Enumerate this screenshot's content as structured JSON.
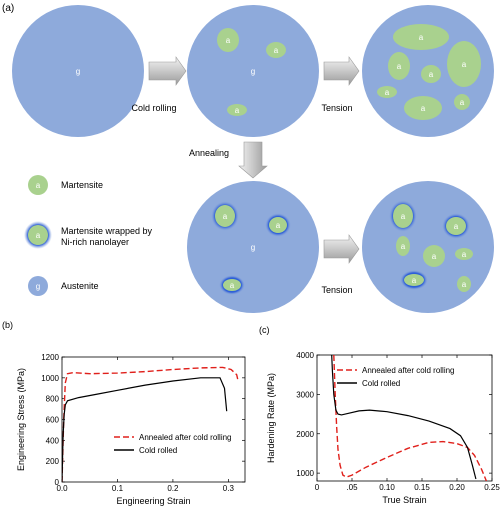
{
  "panel_labels": {
    "a": "(a)",
    "b": "(b)",
    "c": "(c)"
  },
  "schematic": {
    "austenite_symbol": "g",
    "martensite_symbol": "a",
    "arrows": {
      "cold_rolling": "Cold rolling",
      "tension_top": "Tension",
      "annealing": "Annealing",
      "tension_bottom": "Tension"
    },
    "legend": [
      {
        "symbol": "a",
        "text": "Martensite"
      },
      {
        "symbol": "a",
        "text_line1": "Martensite wrapped by",
        "text_line2": "Ni-rich nanolayer"
      },
      {
        "symbol": "g",
        "text": "Austenite"
      }
    ],
    "colors": {
      "austenite": "#8eaadb",
      "martensite": "#a9d18e",
      "nanolayer": "#2e5fd8"
    }
  },
  "chart_data": [
    {
      "type": "line",
      "xlabel": "Engineering Strain",
      "ylabel": "Engineering Stress (MPa)",
      "xlim": [
        0,
        0.33
      ],
      "ylim": [
        0,
        1200
      ],
      "xticks": [
        "0.0",
        "0.1",
        "0.2",
        "0.3"
      ],
      "yticks": [
        "0",
        "200",
        "400",
        "600",
        "800",
        "1000",
        "1200"
      ],
      "series": [
        {
          "name": "Annealed after cold rolling",
          "color": "#e0201b",
          "dash": true,
          "x": [
            0,
            0.003,
            0.006,
            0.01,
            0.02,
            0.05,
            0.1,
            0.15,
            0.2,
            0.25,
            0.29,
            0.305,
            0.315,
            0.318
          ],
          "y": [
            0,
            600,
            950,
            1040,
            1050,
            1040,
            1045,
            1060,
            1080,
            1095,
            1100,
            1080,
            1030,
            960
          ]
        },
        {
          "name": "Cold rolled",
          "color": "#000000",
          "dash": false,
          "x": [
            0,
            0.002,
            0.004,
            0.006,
            0.01,
            0.03,
            0.06,
            0.1,
            0.15,
            0.2,
            0.25,
            0.285,
            0.293,
            0.297
          ],
          "y": [
            0,
            450,
            650,
            740,
            780,
            810,
            840,
            880,
            930,
            970,
            1000,
            1000,
            900,
            680
          ]
        }
      ]
    },
    {
      "type": "line",
      "xlabel": "True Strain",
      "ylabel": "Hardening Rate (MPa)",
      "xlim": [
        0,
        0.25
      ],
      "ylim": [
        800,
        4000
      ],
      "xticks": [
        "0",
        ".05",
        "0.10",
        "0.15",
        "0.20",
        "0.25"
      ],
      "yticks": [
        "1000",
        "2000",
        "3000",
        "4000"
      ],
      "series": [
        {
          "name": "Annealed after cold rolling",
          "color": "#e0201b",
          "dash": true,
          "x": [
            0.024,
            0.026,
            0.028,
            0.03,
            0.033,
            0.037,
            0.042,
            0.05,
            0.07,
            0.1,
            0.13,
            0.16,
            0.18,
            0.2,
            0.215,
            0.225,
            0.235,
            0.242
          ],
          "y": [
            4000,
            3000,
            2200,
            1600,
            1200,
            950,
            900,
            950,
            1150,
            1400,
            1630,
            1780,
            1800,
            1750,
            1650,
            1450,
            1100,
            800
          ]
        },
        {
          "name": "Cold rolled",
          "color": "#000000",
          "dash": false,
          "x": [
            0.021,
            0.022,
            0.024,
            0.027,
            0.03,
            0.035,
            0.045,
            0.06,
            0.075,
            0.1,
            0.13,
            0.16,
            0.19,
            0.205,
            0.215,
            0.222,
            0.227
          ],
          "y": [
            4000,
            3600,
            3000,
            2600,
            2500,
            2480,
            2520,
            2580,
            2600,
            2560,
            2460,
            2320,
            2130,
            1950,
            1650,
            1200,
            850
          ]
        }
      ]
    }
  ]
}
